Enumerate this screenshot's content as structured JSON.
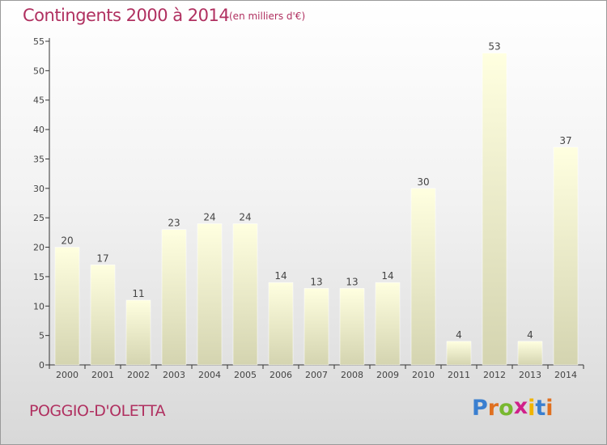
{
  "chart_data": {
    "type": "bar",
    "title": "Contingents 2000 à 2014",
    "subtitle": "(en milliers d'€)",
    "categories": [
      "2000",
      "2001",
      "2002",
      "2003",
      "2004",
      "2005",
      "2006",
      "2007",
      "2008",
      "2009",
      "2010",
      "2011",
      "2012",
      "2013",
      "2014"
    ],
    "values": [
      20,
      17,
      11,
      23,
      24,
      24,
      14,
      13,
      13,
      14,
      30,
      4,
      53,
      4,
      37
    ],
    "y_ticks": [
      0,
      5,
      10,
      15,
      20,
      25,
      30,
      35,
      40,
      45,
      50,
      55
    ],
    "ylim": [
      0,
      55
    ],
    "grid": false,
    "bar_color_top": "#ffffe0",
    "bar_color_bottom": "#d4d4b0"
  },
  "footer": {
    "commune": "POGGIO-D'OLETTA",
    "logo_letters": [
      {
        "char": "P",
        "color": "#3a7fd0"
      },
      {
        "char": "r",
        "color": "#e07020"
      },
      {
        "char": "o",
        "color": "#78b830"
      },
      {
        "char": "x",
        "color": "#d0208a"
      },
      {
        "char": "i",
        "color": "#f0b400"
      },
      {
        "char": "t",
        "color": "#3a7fd0"
      },
      {
        "char": "i",
        "color": "#e07020"
      }
    ]
  },
  "colors": {
    "title": "#b03060",
    "axis": "#333333",
    "label_text": "#444444"
  }
}
